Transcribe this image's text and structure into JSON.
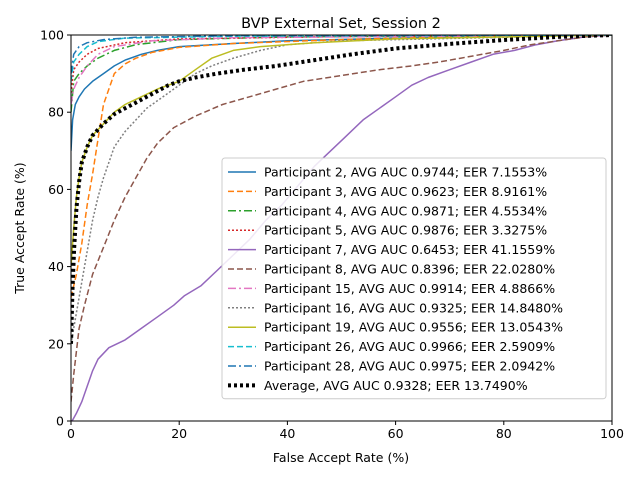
{
  "chart_data": {
    "type": "line",
    "title": "BVP External Set, Session 2",
    "xlabel": "False Accept Rate (%)",
    "ylabel": "True Accept Rate (%)",
    "xlim": [
      0,
      100
    ],
    "ylim": [
      0,
      100
    ],
    "xticks": [
      "0",
      "20",
      "40",
      "60",
      "80",
      "100"
    ],
    "yticks": [
      "0",
      "20",
      "40",
      "60",
      "80",
      "100"
    ],
    "grid": false,
    "legend_position": "lower-right",
    "series": [
      {
        "name": "Participant 2, AVG AUC 0.9744; EER 7.1553%",
        "color": "#1f77b4",
        "dash": "solid",
        "width": 1.5,
        "points": [
          [
            0,
            70
          ],
          [
            0.3,
            78
          ],
          [
            0.8,
            82
          ],
          [
            1.5,
            84
          ],
          [
            2.5,
            86
          ],
          [
            4,
            88
          ],
          [
            6,
            90
          ],
          [
            8,
            92
          ],
          [
            10,
            93.5
          ],
          [
            13,
            95
          ],
          [
            16,
            96
          ],
          [
            20,
            97
          ],
          [
            30,
            97.8
          ],
          [
            40,
            98.5
          ],
          [
            60,
            99.2
          ],
          [
            80,
            99.7
          ],
          [
            100,
            100
          ]
        ]
      },
      {
        "name": "Participant 3, AVG AUC 0.9623; EER 8.9161%",
        "color": "#ff7f0e",
        "dash": "6,3",
        "width": 1.5,
        "points": [
          [
            0,
            32
          ],
          [
            1,
            38
          ],
          [
            2,
            46
          ],
          [
            3,
            56
          ],
          [
            4,
            64
          ],
          [
            5,
            73
          ],
          [
            6,
            82
          ],
          [
            7,
            86
          ],
          [
            8,
            90
          ],
          [
            10,
            92.5
          ],
          [
            12,
            94
          ],
          [
            15,
            95.5
          ],
          [
            20,
            96.8
          ],
          [
            30,
            97.8
          ],
          [
            50,
            98.8
          ],
          [
            70,
            99.5
          ],
          [
            100,
            100
          ]
        ]
      },
      {
        "name": "Participant 4, AVG AUC 0.9871; EER 4.5534%",
        "color": "#2ca02c",
        "dash": "8,3,2,3",
        "width": 1.5,
        "points": [
          [
            0,
            80
          ],
          [
            0.5,
            88
          ],
          [
            1.5,
            90
          ],
          [
            3,
            92
          ],
          [
            5,
            94
          ],
          [
            8,
            96
          ],
          [
            12,
            97.5
          ],
          [
            20,
            98.8
          ],
          [
            40,
            99.5
          ],
          [
            100,
            100
          ]
        ]
      },
      {
        "name": "Participant 5, AVG AUC 0.9876; EER 3.3275%",
        "color": "#d62728",
        "dash": "2,2",
        "width": 1.5,
        "points": [
          [
            0,
            85
          ],
          [
            0.5,
            91
          ],
          [
            1.5,
            93
          ],
          [
            3,
            95
          ],
          [
            5,
            96.5
          ],
          [
            10,
            98
          ],
          [
            20,
            99
          ],
          [
            50,
            99.6
          ],
          [
            100,
            100
          ]
        ]
      },
      {
        "name": "Participant 7, AVG AUC 0.6453; EER 41.1559%",
        "color": "#9467bd",
        "dash": "solid",
        "width": 1.5,
        "points": [
          [
            0.2,
            0
          ],
          [
            1,
            2
          ],
          [
            2,
            5
          ],
          [
            3,
            9
          ],
          [
            4,
            13
          ],
          [
            5,
            16
          ],
          [
            7,
            19
          ],
          [
            10,
            21
          ],
          [
            13,
            24
          ],
          [
            16,
            27
          ],
          [
            19,
            30
          ],
          [
            21,
            32.5
          ],
          [
            24,
            35
          ],
          [
            27,
            39
          ],
          [
            30,
            43
          ],
          [
            33,
            47
          ],
          [
            36,
            52
          ],
          [
            39,
            56
          ],
          [
            42,
            61
          ],
          [
            45,
            66
          ],
          [
            48,
            70
          ],
          [
            51,
            74
          ],
          [
            54,
            78
          ],
          [
            57,
            81
          ],
          [
            60,
            84
          ],
          [
            63,
            87
          ],
          [
            66,
            89
          ],
          [
            70,
            91
          ],
          [
            74,
            93
          ],
          [
            78,
            95
          ],
          [
            82,
            96
          ],
          [
            86,
            97.5
          ],
          [
            90,
            98.5
          ],
          [
            95,
            99.5
          ],
          [
            100,
            100
          ]
        ]
      },
      {
        "name": "Participant 8, AVG AUC 0.8396; EER 22.0280%",
        "color": "#8c564b",
        "dash": "6,3",
        "width": 1.5,
        "points": [
          [
            0,
            5
          ],
          [
            0.5,
            12
          ],
          [
            1,
            18
          ],
          [
            1.5,
            24
          ],
          [
            2.5,
            30
          ],
          [
            4,
            38
          ],
          [
            6,
            45
          ],
          [
            8,
            52
          ],
          [
            10,
            58
          ],
          [
            12,
            63
          ],
          [
            14,
            68
          ],
          [
            16,
            72
          ],
          [
            19,
            76
          ],
          [
            23,
            79
          ],
          [
            28,
            82
          ],
          [
            33,
            84
          ],
          [
            38,
            86
          ],
          [
            43,
            88
          ],
          [
            50,
            89.5
          ],
          [
            57,
            91
          ],
          [
            63,
            92
          ],
          [
            68,
            93
          ],
          [
            72,
            94
          ],
          [
            76,
            95
          ],
          [
            80,
            96
          ],
          [
            85,
            97.5
          ],
          [
            90,
            98.5
          ],
          [
            95,
            99.5
          ],
          [
            100,
            100
          ]
        ]
      },
      {
        "name": "Participant 15, AVG AUC 0.9914; EER 4.8866%",
        "color": "#e377c2",
        "dash": "8,3,2,3",
        "width": 1.5,
        "points": [
          [
            0,
            82
          ],
          [
            0.5,
            86
          ],
          [
            1.5,
            89
          ],
          [
            3,
            92
          ],
          [
            5,
            95
          ],
          [
            8,
            97
          ],
          [
            15,
            98.5
          ],
          [
            30,
            99.3
          ],
          [
            100,
            100
          ]
        ]
      },
      {
        "name": "Participant 16, AVG AUC 0.9325; EER 14.8480%",
        "color": "#7f7f7f",
        "dash": "2,2",
        "width": 1.5,
        "points": [
          [
            0,
            20
          ],
          [
            1,
            28
          ],
          [
            2,
            36
          ],
          [
            3,
            44
          ],
          [
            4,
            52
          ],
          [
            5,
            58
          ],
          [
            6,
            63
          ],
          [
            7,
            67
          ],
          [
            8,
            71
          ],
          [
            10,
            75
          ],
          [
            12,
            78
          ],
          [
            14,
            81
          ],
          [
            17,
            84
          ],
          [
            20,
            87
          ],
          [
            23,
            90
          ],
          [
            26,
            92
          ],
          [
            30,
            94
          ],
          [
            35,
            96
          ],
          [
            40,
            97.5
          ],
          [
            50,
            98.5
          ],
          [
            100,
            100
          ]
        ]
      },
      {
        "name": "Participant 19, AVG AUC 0.9556; EER 13.0543%",
        "color": "#bcbd22",
        "dash": "solid",
        "width": 1.5,
        "points": [
          [
            0,
            40
          ],
          [
            0.5,
            50
          ],
          [
            1,
            58
          ],
          [
            1.5,
            63
          ],
          [
            2,
            67
          ],
          [
            3,
            71
          ],
          [
            4,
            74
          ],
          [
            6,
            77
          ],
          [
            8,
            80
          ],
          [
            10,
            82
          ],
          [
            13,
            84
          ],
          [
            16,
            86
          ],
          [
            20,
            88
          ],
          [
            23,
            91
          ],
          [
            26,
            94
          ],
          [
            30,
            96
          ],
          [
            35,
            97
          ],
          [
            45,
            98
          ],
          [
            60,
            99
          ],
          [
            100,
            100
          ]
        ]
      },
      {
        "name": "Participant 26, AVG AUC 0.9966; EER 2.5909%",
        "color": "#17becf",
        "dash": "6,3",
        "width": 1.5,
        "points": [
          [
            0,
            88
          ],
          [
            0.5,
            93
          ],
          [
            1.5,
            95
          ],
          [
            3,
            97
          ],
          [
            5,
            98.3
          ],
          [
            10,
            99.2
          ],
          [
            30,
            99.7
          ],
          [
            100,
            100
          ]
        ]
      },
      {
        "name": "Participant 28, AVG AUC 0.9975; EER 2.0942%",
        "color": "#1f77b4",
        "dash": "8,3,2,3",
        "width": 1.5,
        "points": [
          [
            0,
            90
          ],
          [
            0.5,
            95
          ],
          [
            1.5,
            97
          ],
          [
            3,
            98
          ],
          [
            6,
            98.8
          ],
          [
            12,
            99.4
          ],
          [
            30,
            99.8
          ],
          [
            100,
            100
          ]
        ]
      },
      {
        "name": "Average, AVG AUC 0.9328; EER 13.7490%",
        "color": "#000000",
        "dash": "3,3",
        "width": 4,
        "points": [
          [
            0,
            20
          ],
          [
            0.3,
            35
          ],
          [
            0.6,
            45
          ],
          [
            1,
            55
          ],
          [
            1.5,
            62
          ],
          [
            2,
            67
          ],
          [
            3,
            71
          ],
          [
            4,
            74
          ],
          [
            6,
            77
          ],
          [
            8,
            79.5
          ],
          [
            10,
            81
          ],
          [
            12,
            82.5
          ],
          [
            14,
            84
          ],
          [
            16,
            85.5
          ],
          [
            18,
            87
          ],
          [
            20,
            88
          ],
          [
            23,
            89
          ],
          [
            27,
            90
          ],
          [
            32,
            91
          ],
          [
            38,
            92
          ],
          [
            45,
            93.5
          ],
          [
            52,
            95
          ],
          [
            60,
            96.5
          ],
          [
            70,
            97.7
          ],
          [
            80,
            98.7
          ],
          [
            90,
            99.5
          ],
          [
            100,
            100
          ]
        ]
      }
    ]
  }
}
